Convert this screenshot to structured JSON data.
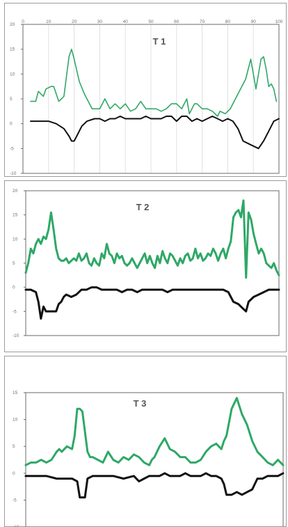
{
  "colors": {
    "green": "#2ea866",
    "black": "#111111",
    "grid": "#e0e0e0",
    "frame": "#6a6a6a"
  },
  "chart_data": [
    {
      "type": "line",
      "title": "T 1",
      "xlim": [
        0,
        100
      ],
      "ylim": [
        -10,
        20
      ],
      "xticks": [
        "0",
        "10",
        "20",
        "30",
        "40",
        "50",
        "60",
        "70",
        "80",
        "90",
        "100"
      ],
      "yticks": [
        "20",
        "15",
        "10",
        "5",
        "0",
        "-5",
        "-10"
      ],
      "grid": true,
      "series": [
        {
          "color": "green",
          "x": [
            3,
            5,
            6,
            8,
            9,
            11,
            12,
            14,
            16,
            18,
            19,
            20,
            22,
            24,
            27,
            30,
            32,
            34,
            36,
            38,
            40,
            42,
            44,
            46,
            48,
            50,
            52,
            54,
            56,
            58,
            60,
            62,
            64,
            65,
            67,
            68,
            70,
            72,
            74,
            76,
            77,
            79,
            81,
            83,
            85,
            87,
            89,
            90,
            91,
            92,
            93,
            94,
            95,
            96,
            97,
            98,
            99
          ],
          "y": [
            4.5,
            4.5,
            6.5,
            5.5,
            7,
            7.5,
            7.5,
            4.5,
            5.5,
            13.5,
            15,
            13,
            8.5,
            6,
            3,
            3,
            5,
            3,
            4,
            3,
            4,
            2.5,
            3,
            4.5,
            3,
            3,
            3,
            2.5,
            3,
            4,
            4,
            3,
            5,
            2,
            4,
            4,
            3,
            3,
            2.5,
            1.5,
            2.5,
            2,
            3,
            5,
            7,
            9,
            13,
            10,
            7,
            10,
            13,
            13.5,
            11,
            7.5,
            8,
            7,
            4.5
          ]
        },
        {
          "color": "black",
          "x": [
            3,
            7,
            10,
            13,
            16,
            18,
            19,
            20,
            21,
            23,
            25,
            28,
            30,
            32,
            34,
            36,
            38,
            40,
            42,
            44,
            46,
            48,
            50,
            52,
            54,
            56,
            58,
            60,
            62,
            64,
            66,
            68,
            70,
            72,
            74,
            76,
            78,
            80,
            82,
            84,
            86,
            88,
            90,
            92,
            94,
            96,
            98,
            100
          ],
          "y": [
            0.5,
            0.5,
            0.5,
            0,
            -1,
            -2.5,
            -3.5,
            -3.5,
            -2.5,
            -0.5,
            0.5,
            1,
            1,
            0.5,
            1,
            1,
            1.5,
            1,
            1,
            1,
            1,
            1.5,
            1,
            1,
            1,
            1.5,
            1.5,
            0.5,
            1.5,
            1.5,
            0.5,
            1,
            0.5,
            1,
            1.5,
            1,
            0.5,
            1,
            0.5,
            -1,
            -3.5,
            -4,
            -4.5,
            -5,
            -3.5,
            -1.5,
            0.5,
            1
          ]
        }
      ]
    },
    {
      "type": "line",
      "title": "T 2",
      "ylim": [
        -10,
        20
      ],
      "yticks": [
        "20",
        "15",
        "10",
        "5",
        "0",
        "-5",
        "-10"
      ],
      "grid": false,
      "series": [
        {
          "color": "green",
          "x": [
            0,
            1,
            2,
            3,
            4,
            5,
            6,
            7,
            8,
            9,
            10,
            11,
            12,
            13,
            14,
            15,
            16,
            17,
            18,
            19,
            20,
            21,
            22,
            23,
            24,
            25,
            26,
            27,
            28,
            29,
            30,
            31,
            32,
            33,
            34,
            35,
            36,
            37,
            38,
            39,
            40,
            41,
            42,
            43,
            44,
            45,
            46,
            47,
            48,
            49,
            50,
            51,
            52,
            53,
            54,
            55,
            56,
            57,
            58,
            59,
            60,
            61,
            62,
            63,
            64,
            65,
            66,
            67,
            68,
            69,
            70,
            71,
            72,
            73,
            74,
            75,
            76,
            77,
            78,
            79,
            80,
            81,
            82,
            83,
            84,
            85,
            86,
            87,
            88,
            89,
            90,
            91,
            92,
            93,
            94,
            95,
            96,
            97,
            98,
            99,
            100
          ],
          "y": [
            3,
            5,
            8,
            7,
            9,
            10,
            9,
            10.5,
            10,
            12,
            15.5,
            12,
            8,
            6,
            5.5,
            5.5,
            6,
            5,
            5.5,
            6,
            5.5,
            7,
            5.5,
            6,
            7,
            5,
            4.5,
            6,
            5,
            4.5,
            7,
            6,
            9,
            7,
            6.5,
            5,
            7,
            6,
            6.5,
            5,
            4.5,
            5,
            6,
            5,
            4,
            5,
            6,
            7,
            5,
            6.5,
            5,
            4,
            6.5,
            5,
            7.5,
            6,
            5,
            7,
            6.5,
            5.5,
            4.5,
            6,
            5,
            6.5,
            7,
            5.5,
            6,
            8,
            6,
            7,
            5.5,
            6,
            7,
            6.5,
            8,
            7,
            5.5,
            7,
            8,
            6,
            8,
            9.5,
            14.5,
            15.5,
            16,
            14.5,
            18,
            2,
            15.5,
            14,
            11,
            9,
            7,
            8,
            7,
            5,
            4.5,
            4,
            5,
            3.5,
            2.5
          ]
        },
        {
          "color": "black",
          "x": [
            0,
            2,
            4,
            5,
            6,
            7,
            8,
            9,
            10,
            12,
            13,
            14,
            15,
            16,
            18,
            20,
            22,
            24,
            26,
            28,
            30,
            32,
            34,
            36,
            38,
            40,
            42,
            44,
            46,
            48,
            50,
            52,
            54,
            56,
            58,
            60,
            62,
            64,
            66,
            68,
            70,
            72,
            74,
            76,
            78,
            80,
            81,
            82,
            84,
            86,
            87,
            88,
            90,
            92,
            94,
            96,
            98,
            100
          ],
          "y": [
            -0.5,
            -0.5,
            -1,
            -3,
            -6.5,
            -4,
            -5,
            -5,
            -5,
            -5,
            -3.5,
            -3,
            -2,
            -1.5,
            -2,
            -1.5,
            -0.5,
            -0.5,
            0,
            0,
            -0.5,
            -0.5,
            -0.5,
            -0.5,
            -1,
            -0.5,
            -0.5,
            -1,
            -0.5,
            -0.5,
            -0.5,
            -0.5,
            -0.5,
            -1,
            -0.5,
            -0.5,
            -0.5,
            -0.5,
            -0.5,
            -0.5,
            -0.5,
            -0.5,
            -0.5,
            -0.5,
            -0.5,
            -1,
            -2,
            -3,
            -3.5,
            -4.5,
            -5,
            -3,
            -2,
            -1.5,
            -1,
            -0.5,
            -0.5,
            -0.5
          ]
        }
      ]
    },
    {
      "type": "line",
      "title": "T 3",
      "ylim": [
        -10,
        15
      ],
      "yticks": [
        "15",
        "10",
        "5",
        "0",
        "-5",
        "-10"
      ],
      "grid": false,
      "series": [
        {
          "color": "green",
          "x": [
            0,
            2,
            4,
            6,
            8,
            10,
            12,
            13,
            14,
            16,
            18,
            19,
            20,
            21,
            22,
            24,
            25,
            26,
            28,
            30,
            32,
            34,
            36,
            38,
            40,
            42,
            44,
            46,
            48,
            49,
            50,
            52,
            54,
            56,
            58,
            60,
            62,
            64,
            66,
            68,
            70,
            72,
            74,
            76,
            77,
            78,
            80,
            82,
            84,
            86,
            88,
            90,
            92,
            94,
            96,
            98,
            100
          ],
          "y": [
            1.5,
            2,
            2,
            2.5,
            2,
            2.5,
            4,
            4.5,
            4,
            5,
            4.5,
            7,
            12,
            12,
            11.5,
            4,
            3,
            3,
            2.5,
            2,
            4,
            2.5,
            2,
            3,
            2.5,
            3.5,
            3,
            2,
            1.5,
            2.5,
            3,
            5,
            6.5,
            4.5,
            4,
            3,
            3,
            2,
            2,
            2.5,
            4,
            5,
            5.5,
            4.5,
            6,
            7,
            12,
            14,
            11,
            9,
            6,
            4,
            3,
            2,
            1.5,
            2.5,
            1.5
          ]
        },
        {
          "color": "black",
          "x": [
            0,
            4,
            8,
            12,
            16,
            18,
            20,
            21,
            22,
            23,
            24,
            26,
            28,
            30,
            34,
            38,
            42,
            44,
            46,
            48,
            50,
            52,
            54,
            56,
            58,
            60,
            62,
            64,
            66,
            68,
            70,
            72,
            74,
            76,
            77,
            78,
            80,
            82,
            84,
            86,
            88,
            90,
            92,
            94,
            96,
            98,
            100
          ],
          "y": [
            -0.5,
            -0.5,
            -0.5,
            -1,
            -1,
            -1,
            -1.5,
            -4.5,
            -4.5,
            -4.5,
            -1,
            -0.5,
            -0.5,
            -0.5,
            -0.5,
            -1,
            -0.5,
            -1.5,
            -1,
            -0.5,
            -0.5,
            -0.5,
            0,
            -0.5,
            -0.5,
            -0.5,
            0,
            -0.5,
            -0.5,
            -0.5,
            0,
            -0.5,
            -0.5,
            -1,
            -2,
            -4,
            -4,
            -3.5,
            -4,
            -3.5,
            -3,
            -1,
            -1,
            -0.5,
            -0.5,
            -0.5,
            0
          ]
        }
      ]
    }
  ]
}
